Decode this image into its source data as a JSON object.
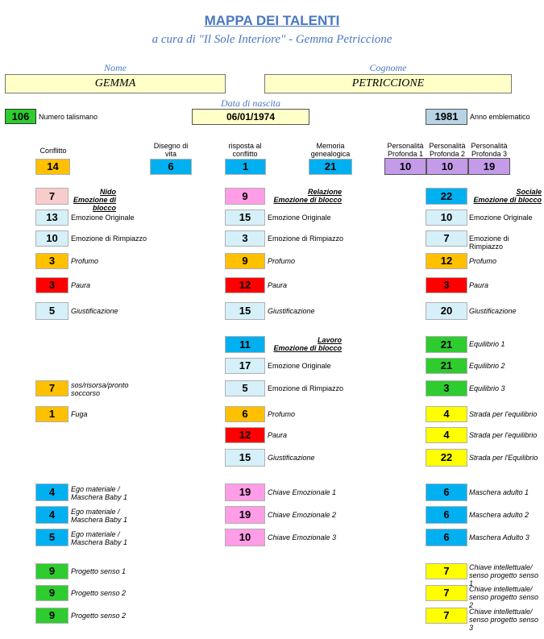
{
  "header": {
    "title": "MAPPA DEI TALENTI",
    "subtitle": "a cura di \"Il Sole Interiore\" - Gemma Petriccione"
  },
  "person": {
    "nome_label": "Nome",
    "nome_value": "GEMMA",
    "cognome_label": "Cognome",
    "cognome_value": "PETRICCIONE",
    "nascita_label": "Data di nascita",
    "nascita_value": "06/01/1974",
    "talismano_value": "106",
    "talismano_label": "Numero talismano",
    "anno_value": "1981",
    "anno_label": "Anno emblematico"
  },
  "top_row": {
    "conflitto": {
      "label": "Conflitto",
      "value": "14"
    },
    "disegno": {
      "label1": "Disegno di",
      "label2": "vita",
      "value": "6"
    },
    "risposta": {
      "label1": "risposta al",
      "label2": "conflitto",
      "value": "1"
    },
    "memoria": {
      "label1": "Memoria",
      "label2": "genealogica",
      "value": "21"
    },
    "pers1": {
      "label1": "Personalità",
      "label2": "Profonda 1",
      "value": "10"
    },
    "pers2": {
      "label1": "Personalità",
      "label2": "Profonda 2",
      "value": "10"
    },
    "pers3": {
      "label1": "Personalità",
      "label2": "Profonda 3",
      "value": "19"
    }
  },
  "nido": {
    "head1": "Nido",
    "head2": "Emozione di blocco",
    "blocco": "7",
    "orig_v": "13",
    "orig_l": "Emozione Originale",
    "rimp_v": "10",
    "rimp_l": "Emozione di Rimpiazzo",
    "prof_v": "3",
    "prof_l": "Profumo",
    "paura_v": "3",
    "paura_l": "Paura",
    "giust_v": "5",
    "giust_l": "Giustificazione",
    "sos_v": "7",
    "sos_l1": "sos/risorsa/pronto",
    "sos_l2": "soccorso",
    "fuga_v": "1",
    "fuga_l": "Fuga"
  },
  "relazione": {
    "head1": "Relazione",
    "head2": "Emozione di blocco",
    "blocco": "9",
    "orig_v": "15",
    "orig_l": "Emozione Originale",
    "rimp_v": "3",
    "rimp_l": "Emozione di Rimpiazzo",
    "prof_v": "9",
    "prof_l": "Profumo",
    "paura_v": "12",
    "paura_l": "Paura",
    "giust_v": "15",
    "giust_l": "Giustificazione"
  },
  "sociale": {
    "head1": "Sociale",
    "head2": "Emozione di blocco",
    "blocco": "22",
    "orig_v": "10",
    "orig_l": "Emozione Originale",
    "rimp_v": "7",
    "rimp_l": "Emozione di Rimpiazzo",
    "prof_v": "12",
    "prof_l": "Profumo",
    "paura_v": "3",
    "paura_l": "Paura",
    "giust_v": "20",
    "giust_l": "Giustificazione"
  },
  "lavoro": {
    "head1": "Lavoro",
    "head2": "Emozione di blocco",
    "blocco": "11",
    "orig_v": "17",
    "orig_l": "Emozione Originale",
    "rimp_v": "5",
    "rimp_l": "Emozione di Rimpiazzo",
    "prof_v": "6",
    "prof_l": "Profumo",
    "paura_v": "12",
    "paura_l": "Paura",
    "giust_v": "15",
    "giust_l": "Giustificazione"
  },
  "equilibrio": {
    "eq1_v": "21",
    "eq1_l": "Equilibrio 1",
    "eq2_v": "21",
    "eq2_l": "Equilibrio 2",
    "eq3_v": "3",
    "eq3_l": "Equilibrio 3",
    "st1_v": "4",
    "st1_l": "Strada per l'equilibrio",
    "st2_v": "4",
    "st2_l": "Strada per l'equilibrio",
    "st3_v": "22",
    "st3_l": "Strada per l'Equilibrio"
  },
  "ego": {
    "e1_v": "4",
    "e2_v": "4",
    "e3_v": "5",
    "l1a": "Ego materiale /",
    "l1b": "Maschera Baby 1",
    "l2a": "Ego materiale /",
    "l2b": "Maschera Baby 1",
    "l3a": "Ego materiale /",
    "l3b": "Maschera Baby 1"
  },
  "chiave_emo": {
    "c1_v": "19",
    "c1_l": "Chiave Emozionale 1",
    "c2_v": "19",
    "c2_l": "Chiave Emozionale 2",
    "c3_v": "10",
    "c3_l": "Chiave Emozionale 3"
  },
  "maschera": {
    "m1_v": "6",
    "m1_l": "Maschera adulto 1",
    "m2_v": "6",
    "m2_l": "Maschera adulto 2",
    "m3_v": "6",
    "m3_l": "Maschera Adulto 3"
  },
  "progetto": {
    "p1_v": "9",
    "p1_l": "Progetto senso 1",
    "p2_v": "9",
    "p2_l": "Progetto senso 2",
    "p3_v": "9",
    "p3_l": "Progetto senso 2"
  },
  "chiave_int": {
    "k1_v": "7",
    "k1_a": "Chiave intellettuale/",
    "k1_b": "senso progetto senso 1",
    "k2_v": "7",
    "k2_a": "Chiave intellettuale/",
    "k2_b": "senso progetto senso 2",
    "k3_v": "7",
    "k3_a": "Chiave intellettuale/",
    "k3_b": "senso progetto senso 3"
  },
  "colors": {
    "green": "#2ecc2e",
    "orange": "#ffc000",
    "blue": "#00b0f0",
    "lavender": "#c39be8",
    "pink": "#f9cccc",
    "magenta": "#ff9de6",
    "light_blue": "#d6f0fa",
    "red": "#ff0000",
    "yellow": "#ffff00",
    "title_blue": "#4a78c2"
  }
}
